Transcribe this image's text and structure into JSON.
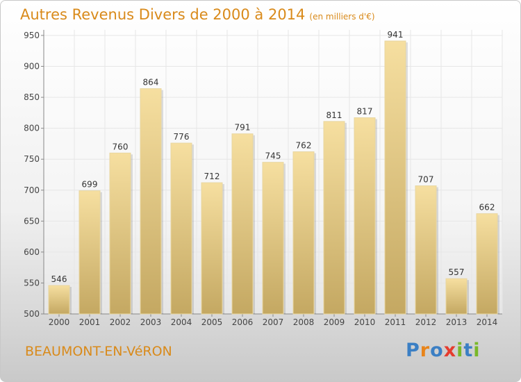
{
  "title": "Autres Revenus Divers de 2000 à 2014",
  "subtitle": "(en milliers d'€)",
  "city": "BEAUMONT-EN-VéRON",
  "logo": {
    "letters": [
      "P",
      "r",
      "o",
      "x",
      "i",
      "t",
      "i"
    ],
    "colors": [
      "#3b7fc4",
      "#e8841a",
      "#3b7fc4",
      "#e53c2e",
      "#79b829",
      "#3b7fc4",
      "#79b829"
    ]
  },
  "colors": {
    "title": "#d98a1a",
    "bar_top": "#f6dfa0",
    "bar_bottom": "#c4a862",
    "grid": "#e6e6e6"
  },
  "chart_data": {
    "type": "bar",
    "categories": [
      "2000",
      "2001",
      "2002",
      "2003",
      "2004",
      "2005",
      "2006",
      "2007",
      "2008",
      "2009",
      "2010",
      "2011",
      "2012",
      "2013",
      "2014"
    ],
    "values": [
      546,
      699,
      760,
      864,
      776,
      712,
      791,
      745,
      762,
      811,
      817,
      941,
      707,
      557,
      662
    ],
    "y_ticks": [
      500,
      550,
      600,
      650,
      700,
      750,
      800,
      850,
      900,
      950
    ],
    "ylim": [
      500,
      950
    ],
    "grid": true,
    "legend": "none"
  }
}
